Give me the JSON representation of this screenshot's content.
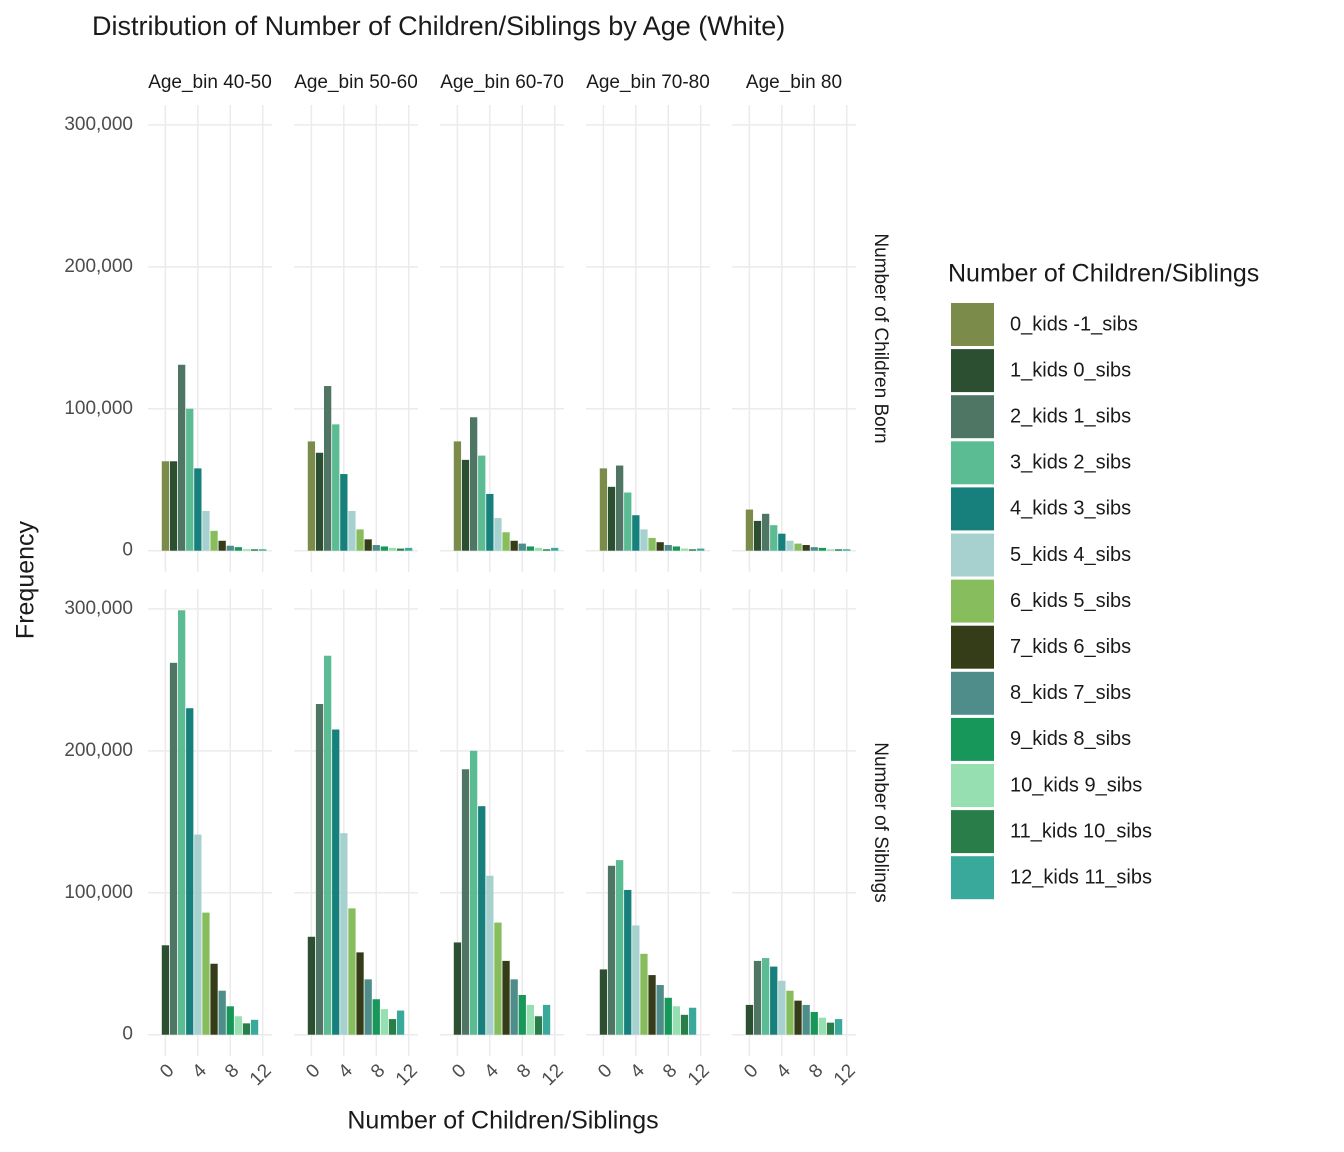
{
  "chart_data": {
    "type": "bar",
    "title": "Distribution of Number of Children/Siblings by Age (White)",
    "x_label": "Number of Children/Siblings",
    "y_label": "Frequency",
    "legend_title": "Number of Children/Siblings",
    "legend_position": "right",
    "grid": true,
    "categories": [
      "0_kids -1_sibs",
      "1_kids 0_sibs",
      "2_kids 1_sibs",
      "3_kids 2_sibs",
      "4_kids 3_sibs",
      "5_kids 4_sibs",
      "6_kids 5_sibs",
      "7_kids 6_sibs",
      "8_kids 7_sibs",
      "9_kids 8_sibs",
      "10_kids 9_sibs",
      "11_kids 10_sibs",
      "12_kids 11_sibs"
    ],
    "colors": [
      "#7b8b4a",
      "#2b4f30",
      "#4f7565",
      "#5bbb92",
      "#177f7c",
      "#a6d1cf",
      "#88bd5e",
      "#353d18",
      "#4e8d8a",
      "#17975a",
      "#95dfb0",
      "#287d48",
      "#39a99c"
    ],
    "columns": [
      "Age_bin 40-50",
      "Age_bin 50-60",
      "Age_bin 60-70",
      "Age_bin 70-80",
      "Age_bin 80"
    ],
    "xlim": [
      -2.15,
      13.15
    ],
    "xticks": [
      0,
      4,
      8,
      12
    ],
    "ylim": [
      -15000,
      314000
    ],
    "yticks": [
      {
        "value": 0,
        "label": "0"
      },
      {
        "value": 100000,
        "label": "100,000"
      },
      {
        "value": 200000,
        "label": "200,000"
      },
      {
        "value": 300000,
        "label": "300,000"
      }
    ],
    "rows": [
      {
        "label": "Number of Children Born",
        "x": [
          0,
          1,
          2,
          3,
          4,
          5,
          6,
          7,
          8,
          9,
          10,
          11,
          12
        ],
        "values": [
          [
            63000,
            63000,
            131000,
            100000,
            58000,
            28000,
            14000,
            7000,
            3500,
            2500,
            1000,
            1000,
            1000
          ],
          [
            77000,
            69000,
            116000,
            89000,
            54000,
            28000,
            15000,
            8000,
            4000,
            3000,
            2000,
            1500,
            2000
          ],
          [
            77000,
            64000,
            94000,
            67000,
            40000,
            23000,
            13000,
            7000,
            5000,
            3000,
            2000,
            1000,
            2000
          ],
          [
            58000,
            45000,
            60000,
            41000,
            25000,
            15000,
            9000,
            6000,
            4000,
            3000,
            1500,
            1000,
            1500
          ],
          [
            29000,
            21000,
            26000,
            18000,
            12000,
            7000,
            5000,
            4000,
            2500,
            2000,
            1000,
            1000,
            1000
          ]
        ]
      },
      {
        "label": "Number of Siblings",
        "x": [
          -1,
          0,
          1,
          2,
          3,
          4,
          5,
          6,
          7,
          8,
          9,
          10,
          11
        ],
        "values": [
          [
            null,
            63000,
            262000,
            299000,
            230000,
            141000,
            86000,
            50000,
            31000,
            20000,
            13000,
            8000,
            10500
          ],
          [
            null,
            69000,
            233000,
            267000,
            215000,
            142000,
            89000,
            58000,
            39000,
            25000,
            18000,
            11000,
            17000
          ],
          [
            null,
            65000,
            187000,
            200000,
            161000,
            112000,
            79000,
            52000,
            39000,
            28000,
            21000,
            13000,
            21000
          ],
          [
            null,
            46000,
            119000,
            123000,
            102000,
            77000,
            57000,
            42000,
            35000,
            26000,
            20000,
            14000,
            19000
          ],
          [
            null,
            21000,
            52000,
            54000,
            48000,
            38000,
            31000,
            24000,
            21000,
            16000,
            12000,
            8500,
            11000
          ]
        ]
      }
    ]
  }
}
